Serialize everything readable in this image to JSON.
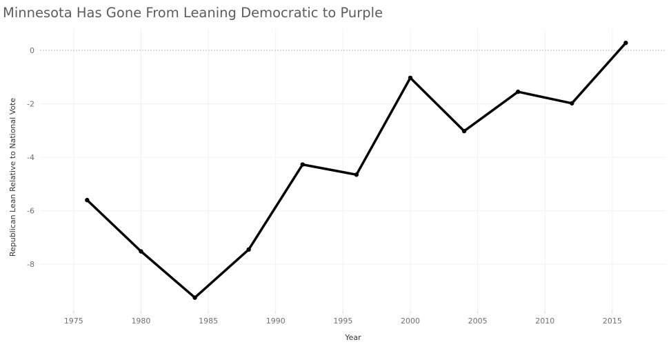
{
  "chart_data": {
    "type": "line",
    "title": "Minnesota Has Gone From Leaning Democratic to Purple",
    "xlabel": "Year",
    "ylabel": "Republican Lean Relative to National Vote",
    "xlim": [
      1972.5,
      2019
    ],
    "ylim": [
      -9.75,
      0.8
    ],
    "xticks": [
      1975,
      1980,
      1985,
      1990,
      1995,
      2000,
      2005,
      2010,
      2015
    ],
    "yticks": [
      0,
      -2,
      -4,
      -6,
      -8
    ],
    "grid": true,
    "reference_line": 0,
    "series": [
      {
        "name": "Republican Lean",
        "color": "#000000",
        "x": [
          1976,
          1980,
          1984,
          1988,
          1992,
          1996,
          2000,
          2004,
          2008,
          2012,
          2016
        ],
        "y": [
          -5.6,
          -7.52,
          -9.25,
          -7.45,
          -4.27,
          -4.65,
          -1.03,
          -3.02,
          -1.55,
          -1.98,
          0.28
        ]
      }
    ]
  }
}
